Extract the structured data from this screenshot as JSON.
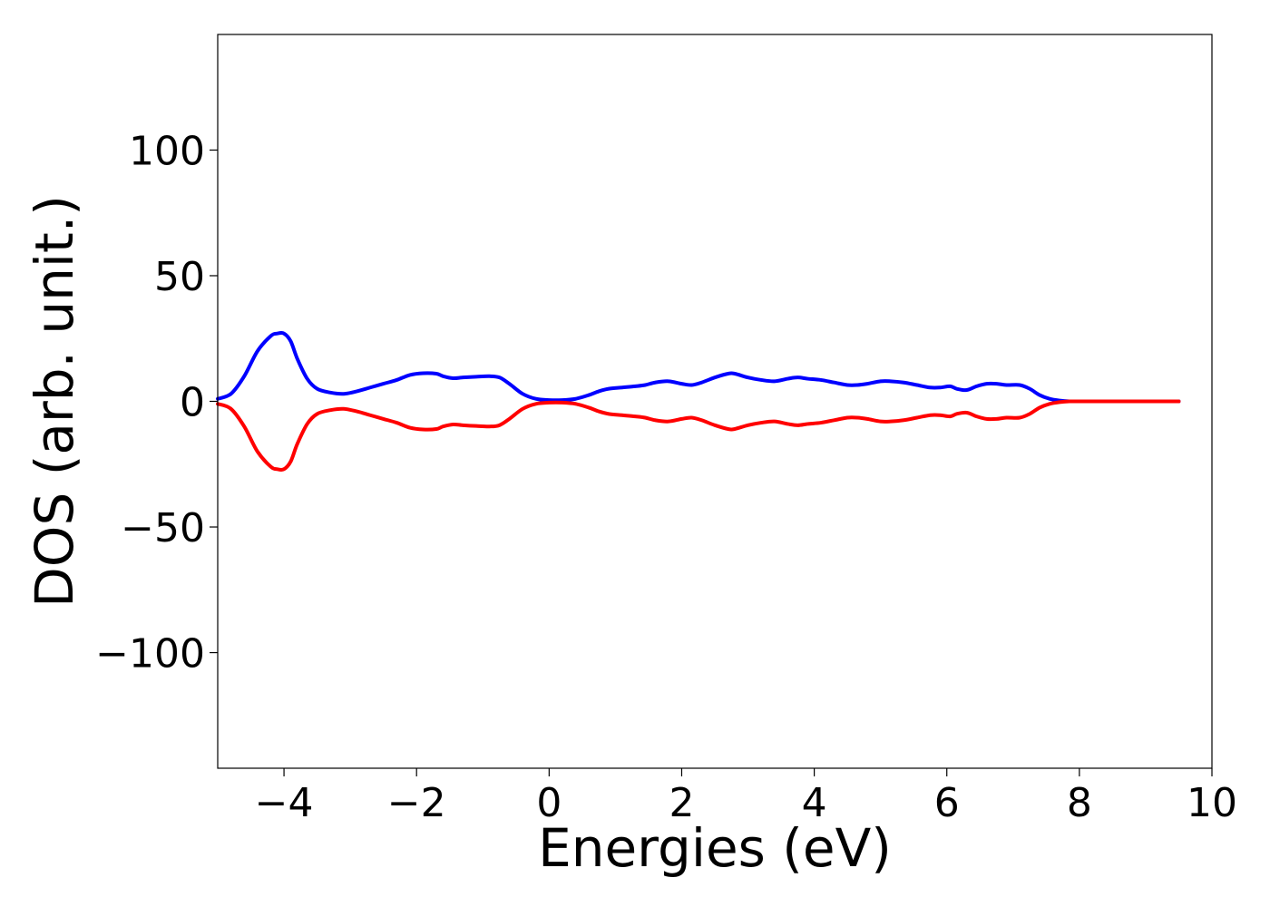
{
  "chart_data": {
    "type": "line",
    "title": "",
    "xlabel": "Energies (eV)",
    "ylabel": "DOS (arb. unit.)",
    "xlim": [
      -5,
      10
    ],
    "ylim": [
      -146,
      146
    ],
    "xticks": [
      -4,
      -2,
      0,
      2,
      4,
      6,
      8,
      10
    ],
    "xtick_labels": [
      "−4",
      "−2",
      "0",
      "2",
      "4",
      "6",
      "8",
      "10"
    ],
    "yticks": [
      100,
      50,
      0,
      -50,
      -100
    ],
    "ytick_labels": [
      "100",
      "50",
      "0",
      "−50",
      "−100"
    ],
    "grid": false,
    "legend": "none",
    "series": [
      {
        "color": "#0000ff",
        "x": [
          -5.0,
          -4.8,
          -4.6,
          -4.4,
          -4.2,
          -4.1,
          -4.0,
          -3.9,
          -3.8,
          -3.65,
          -3.5,
          -3.3,
          -3.1,
          -2.9,
          -2.7,
          -2.5,
          -2.3,
          -2.1,
          -1.9,
          -1.7,
          -1.6,
          -1.45,
          -1.3,
          -1.1,
          -0.9,
          -0.75,
          -0.6,
          -0.4,
          -0.2,
          0.0,
          0.2,
          0.4,
          0.6,
          0.75,
          0.9,
          1.1,
          1.3,
          1.45,
          1.6,
          1.8,
          2.0,
          2.15,
          2.3,
          2.5,
          2.7,
          2.8,
          3.0,
          3.2,
          3.4,
          3.6,
          3.75,
          3.9,
          4.1,
          4.3,
          4.5,
          4.65,
          4.8,
          5.0,
          5.15,
          5.35,
          5.55,
          5.75,
          5.9,
          6.05,
          6.15,
          6.3,
          6.45,
          6.6,
          6.75,
          6.9,
          7.1,
          7.25,
          7.4,
          7.55,
          7.7,
          7.85,
          8.0,
          8.5,
          9.0,
          9.5
        ],
        "y": [
          1,
          3,
          10,
          20,
          26,
          27,
          27,
          24,
          17,
          9,
          5,
          3.5,
          3,
          4,
          5.5,
          7,
          8.5,
          10.5,
          11.2,
          11,
          10,
          9.2,
          9.5,
          9.8,
          10,
          9.5,
          7,
          3,
          1,
          0.5,
          0.5,
          1,
          2.5,
          4,
          5,
          5.5,
          6,
          6.5,
          7.5,
          8,
          7,
          6.5,
          7.5,
          9.5,
          11,
          11,
          9.5,
          8.5,
          8,
          9,
          9.5,
          9,
          8.5,
          7.5,
          6.5,
          6.5,
          7,
          8,
          8,
          7.5,
          6.5,
          5.5,
          5.5,
          6,
          5,
          4.5,
          6,
          7,
          7,
          6.5,
          6.5,
          5,
          2.5,
          1,
          0.3,
          0,
          0,
          0,
          0,
          0
        ]
      },
      {
        "color": "#ff0000",
        "x": [
          -5.0,
          -4.8,
          -4.6,
          -4.4,
          -4.2,
          -4.1,
          -4.0,
          -3.9,
          -3.8,
          -3.65,
          -3.5,
          -3.3,
          -3.1,
          -2.9,
          -2.7,
          -2.5,
          -2.3,
          -2.1,
          -1.9,
          -1.7,
          -1.6,
          -1.45,
          -1.3,
          -1.1,
          -0.9,
          -0.75,
          -0.6,
          -0.4,
          -0.2,
          0.0,
          0.2,
          0.4,
          0.6,
          0.75,
          0.9,
          1.1,
          1.3,
          1.45,
          1.6,
          1.8,
          2.0,
          2.15,
          2.3,
          2.5,
          2.7,
          2.8,
          3.0,
          3.2,
          3.4,
          3.6,
          3.75,
          3.9,
          4.1,
          4.3,
          4.5,
          4.65,
          4.8,
          5.0,
          5.15,
          5.35,
          5.55,
          5.75,
          5.9,
          6.05,
          6.15,
          6.3,
          6.45,
          6.6,
          6.75,
          6.9,
          7.1,
          7.25,
          7.4,
          7.55,
          7.7,
          7.85,
          8.0,
          8.5,
          9.0,
          9.5
        ],
        "y": [
          -1,
          -3,
          -10,
          -20,
          -26,
          -27,
          -27,
          -24,
          -17,
          -9,
          -5,
          -3.5,
          -3,
          -4,
          -5.5,
          -7,
          -8.5,
          -10.5,
          -11.2,
          -11,
          -10,
          -9.2,
          -9.5,
          -9.8,
          -10,
          -9.5,
          -7,
          -3,
          -1,
          -0.5,
          -0.5,
          -1,
          -2.5,
          -4,
          -5,
          -5.5,
          -6,
          -6.5,
          -7.5,
          -8,
          -7,
          -6.5,
          -7.5,
          -9.5,
          -11,
          -11,
          -9.5,
          -8.5,
          -8,
          -9,
          -9.5,
          -9,
          -8.5,
          -7.5,
          -6.5,
          -6.5,
          -7,
          -8,
          -8,
          -7.5,
          -6.5,
          -5.5,
          -5.5,
          -6,
          -5,
          -4.5,
          -6,
          -7,
          -7,
          -6.5,
          -6.5,
          -5,
          -2.5,
          -1,
          -0.3,
          0,
          0,
          0,
          0,
          0
        ]
      }
    ]
  }
}
